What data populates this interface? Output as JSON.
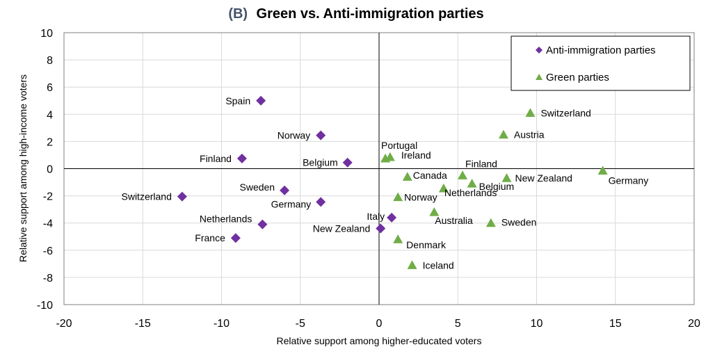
{
  "chart_data": {
    "type": "scatter",
    "title_prefix": "(B)",
    "title": "Green vs. Anti-immigration parties",
    "xlabel": "Relative support among higher-educated voters",
    "ylabel": "Relative support among high-income voters",
    "xlim": [
      -20,
      20
    ],
    "ylim": [
      -10,
      10
    ],
    "xticks": [
      "-20",
      "-15",
      "-10",
      "-5",
      "0",
      "5",
      "10",
      "15",
      "20"
    ],
    "yticks": [
      "10",
      "8",
      "6",
      "4",
      "2",
      "0",
      "-2",
      "-4",
      "-6",
      "-8",
      "-10"
    ],
    "grid": true,
    "legend_position": "top-right",
    "series": [
      {
        "name": "Anti-immigration parties",
        "marker": "diamond",
        "color": "#7030a0",
        "points": [
          {
            "label": "Spain",
            "x": -7.5,
            "y": 5.0
          },
          {
            "label": "Norway",
            "x": -3.7,
            "y": 2.45
          },
          {
            "label": "Finland",
            "x": -8.7,
            "y": 0.75
          },
          {
            "label": "Belgium",
            "x": -2.0,
            "y": 0.45
          },
          {
            "label": "Sweden",
            "x": -6.0,
            "y": -1.6
          },
          {
            "label": "Switzerland",
            "x": -12.5,
            "y": -2.05
          },
          {
            "label": "Germany",
            "x": -3.7,
            "y": -2.45
          },
          {
            "label": "Netherlands",
            "x": -7.4,
            "y": -4.1
          },
          {
            "label": "France",
            "x": -9.1,
            "y": -5.1
          },
          {
            "label": "Italy",
            "x": 0.8,
            "y": -3.6
          },
          {
            "label": "New Zealand",
            "x": 0.1,
            "y": -4.4
          }
        ]
      },
      {
        "name": "Green parties",
        "marker": "triangle",
        "color": "#70ad47",
        "points": [
          {
            "label": "Switzerland",
            "x": 9.6,
            "y": 4.1
          },
          {
            "label": "Austria",
            "x": 7.9,
            "y": 2.5
          },
          {
            "label": "Portugal",
            "x": 0.4,
            "y": 0.75
          },
          {
            "label": "Ireland",
            "x": 0.7,
            "y": 0.85
          },
          {
            "label": "Finland",
            "x": 5.3,
            "y": -0.5
          },
          {
            "label": "Germany",
            "x": 14.2,
            "y": -0.15
          },
          {
            "label": "Canada",
            "x": 1.8,
            "y": -0.6
          },
          {
            "label": "New Zealand",
            "x": 8.1,
            "y": -0.7
          },
          {
            "label": "Belgium",
            "x": 5.9,
            "y": -1.1
          },
          {
            "label": "Netherlands",
            "x": 4.1,
            "y": -1.45
          },
          {
            "label": "Norway",
            "x": 1.2,
            "y": -2.1
          },
          {
            "label": "Australia",
            "x": 3.5,
            "y": -3.2
          },
          {
            "label": "Sweden",
            "x": 7.1,
            "y": -4.0
          },
          {
            "label": "Denmark",
            "x": 1.2,
            "y": -5.2
          },
          {
            "label": "Iceland",
            "x": 2.1,
            "y": -7.1
          }
        ]
      }
    ]
  }
}
